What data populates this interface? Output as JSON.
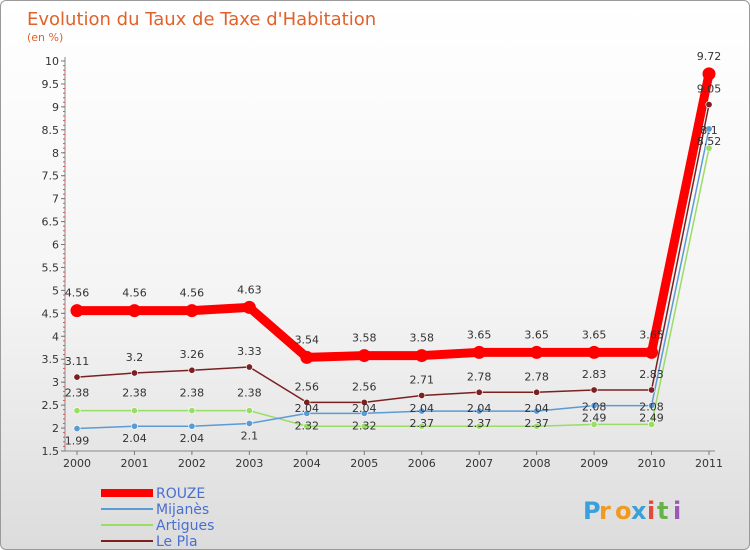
{
  "chart_data": {
    "type": "line",
    "title": "Evolution du Taux de Taxe d'Habitation",
    "subtitle": "(en %)",
    "xlabel": "",
    "ylabel": "(en %)",
    "categories": [
      "2000",
      "2001",
      "2002",
      "2003",
      "2004",
      "2005",
      "2006",
      "2007",
      "2008",
      "2009",
      "2010",
      "2011"
    ],
    "ylim": [
      1.5,
      10
    ],
    "yticks": [
      1.5,
      2,
      2.5,
      3,
      3.5,
      4,
      4.5,
      5,
      5.5,
      6,
      6.5,
      7,
      7.5,
      8,
      8.5,
      9,
      9.5,
      10
    ],
    "grid": false,
    "legend_position": "bottom-left",
    "series": [
      {
        "name": "ROUZE",
        "color": "#ff0000",
        "values": [
          4.56,
          4.56,
          4.56,
          4.63,
          3.54,
          3.58,
          3.58,
          3.65,
          3.65,
          3.65,
          3.65,
          9.72
        ],
        "labels": [
          "4.56",
          "4.56",
          "4.56",
          "4.63",
          "3.54",
          "3.58",
          "3.58",
          "3.65",
          "3.65",
          "3.65",
          "3.65",
          "9.72"
        ]
      },
      {
        "name": "Mijanès",
        "color": "#5b9bd5",
        "values": [
          1.99,
          2.04,
          2.04,
          2.1,
          2.32,
          2.32,
          2.37,
          2.37,
          2.37,
          2.49,
          2.49,
          8.52
        ],
        "labels": [
          "1.99",
          "2.04",
          "2.04",
          "2.1",
          "2.32",
          "2.32",
          "2.37",
          "2.37",
          "2.37",
          "2.49",
          "2.49",
          "8.52"
        ]
      },
      {
        "name": "Artigues",
        "color": "#99dd66",
        "values": [
          2.38,
          2.38,
          2.38,
          2.38,
          2.04,
          2.04,
          2.04,
          2.04,
          2.04,
          2.08,
          2.08,
          8.1
        ],
        "labels": [
          "2.38",
          "2.38",
          "2.38",
          "2.38",
          "2.04",
          "2.04",
          "2.04",
          "2.04",
          "2.04",
          "2.08",
          "2.08",
          "8.1"
        ]
      },
      {
        "name": "Le Pla",
        "color": "#7b2020",
        "values": [
          3.11,
          3.2,
          3.26,
          3.33,
          2.56,
          2.56,
          2.71,
          2.78,
          2.78,
          2.83,
          2.83,
          9.05
        ],
        "labels": [
          "3.11",
          "3.2",
          "3.26",
          "3.33",
          "2.56",
          "2.56",
          "2.71",
          "2.78",
          "2.78",
          "2.83",
          "2.83",
          "9.05"
        ]
      }
    ]
  },
  "brand": {
    "letters": [
      "P",
      "r",
      "o",
      "x",
      "i",
      "t",
      "i"
    ],
    "colors": [
      "#3aa0dc",
      "#f29a1f",
      "#f29a1f",
      "#3aa0dc",
      "#e04b3c",
      "#66b34a",
      "#9b59b6"
    ]
  }
}
